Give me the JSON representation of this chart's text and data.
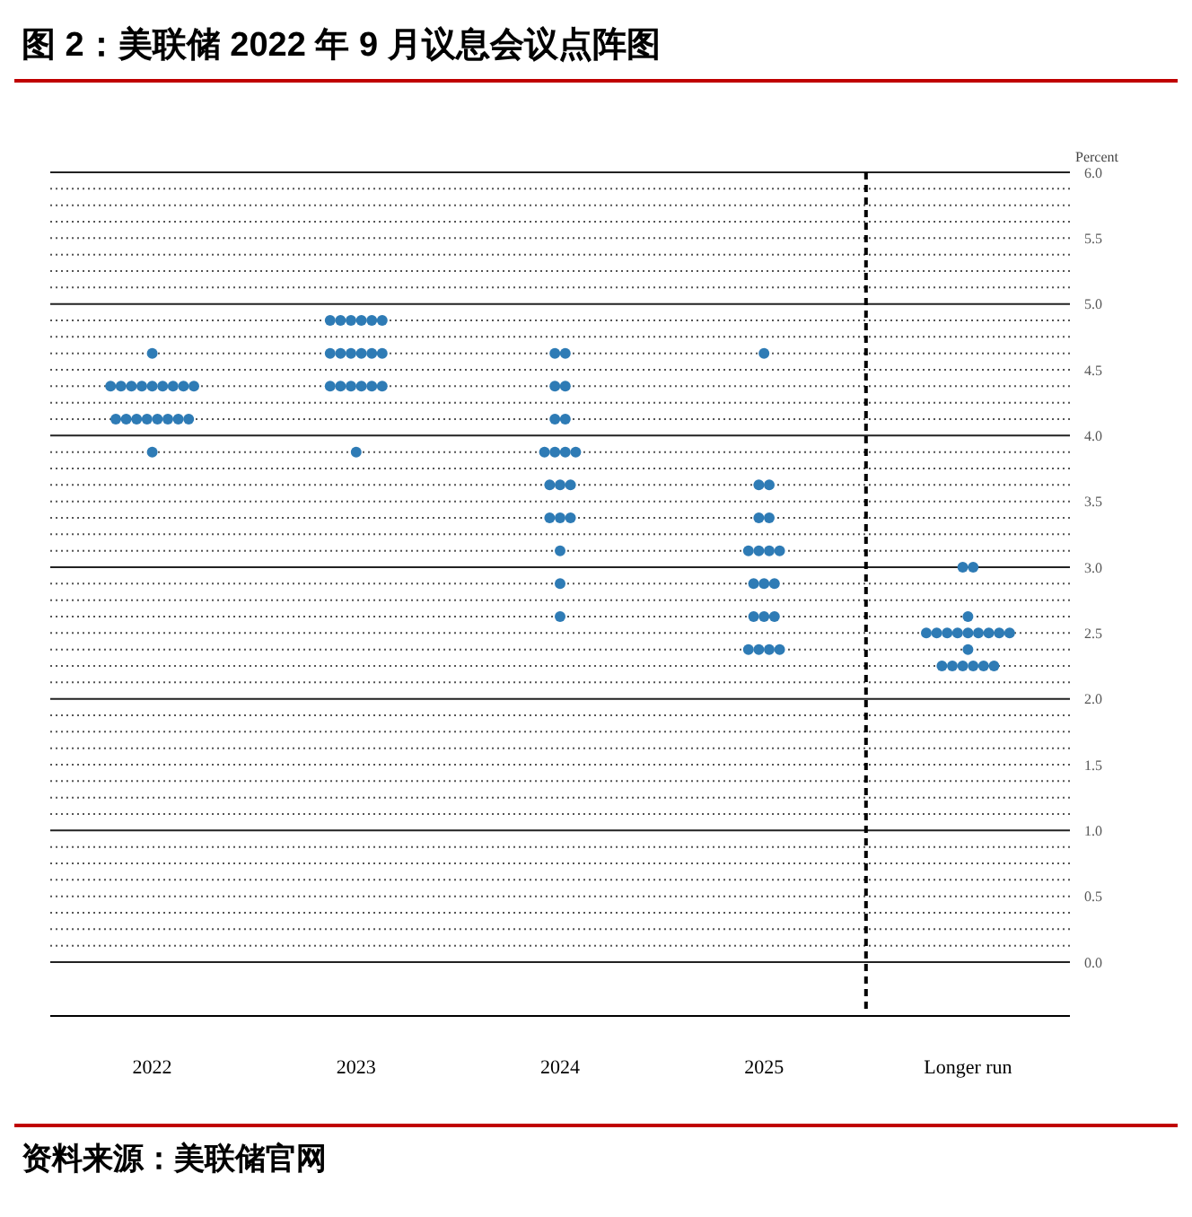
{
  "chart_data": {
    "type": "scatter",
    "title": "图 2：美联储 2022 年 9 月议息会议点阵图",
    "ylabel": "Percent",
    "annotations": [
      "资料来源：美联储官网"
    ],
    "categories": [
      "2022",
      "2023",
      "2024",
      "2025",
      "Longer run"
    ],
    "series": [
      {
        "color": "#2e7bb5",
        "values": [
          4.625,
          4.875,
          4.625,
          4.625,
          3.0
        ]
      },
      {
        "color": "#2e7bb5",
        "values": [
          4.375,
          4.875,
          4.625,
          3.625,
          3.0
        ]
      },
      {
        "color": "#2e7bb5",
        "values": [
          4.375,
          4.875,
          4.375,
          3.625,
          2.625
        ]
      },
      {
        "color": "#2e7bb5",
        "values": [
          4.375,
          4.875,
          4.375,
          3.375,
          2.5
        ]
      },
      {
        "color": "#2e7bb5",
        "values": [
          4.375,
          4.875,
          4.125,
          3.375,
          2.5
        ]
      },
      {
        "color": "#2e7bb5",
        "values": [
          4.375,
          4.875,
          4.125,
          3.125,
          2.5
        ]
      },
      {
        "color": "#2e7bb5",
        "values": [
          4.375,
          4.625,
          3.875,
          3.125,
          2.5
        ]
      },
      {
        "color": "#2e7bb5",
        "values": [
          4.375,
          4.625,
          3.875,
          3.125,
          2.5
        ]
      },
      {
        "color": "#2e7bb5",
        "values": [
          4.375,
          4.625,
          3.875,
          3.125,
          2.5
        ]
      },
      {
        "color": "#2e7bb5",
        "values": [
          4.375,
          4.625,
          3.875,
          2.875,
          2.5
        ]
      },
      {
        "color": "#2e7bb5",
        "values": [
          4.125,
          4.625,
          3.625,
          2.875,
          2.5
        ]
      },
      {
        "color": "#2e7bb5",
        "values": [
          4.125,
          4.625,
          3.625,
          2.875,
          2.5
        ]
      },
      {
        "color": "#2e7bb5",
        "values": [
          4.125,
          4.375,
          3.625,
          2.625,
          2.375
        ]
      },
      {
        "color": "#2e7bb5",
        "values": [
          4.125,
          4.375,
          3.375,
          2.625,
          2.25
        ]
      },
      {
        "color": "#2e7bb5",
        "values": [
          4.125,
          4.375,
          3.375,
          2.625,
          2.25
        ]
      },
      {
        "color": "#2e7bb5",
        "values": [
          4.125,
          4.375,
          3.375,
          2.375,
          2.25
        ]
      },
      {
        "color": "#2e7bb5",
        "values": [
          4.125,
          4.375,
          3.125,
          2.375,
          2.25
        ]
      },
      {
        "color": "#2e7bb5",
        "values": [
          4.125,
          4.375,
          2.875,
          2.375,
          2.25
        ]
      },
      {
        "color": "#2e7bb5",
        "values": [
          3.875,
          3.875,
          2.625,
          2.375,
          2.25
        ]
      }
    ],
    "ylim": [
      0,
      6
    ],
    "yticks": [
      {
        "value": 0,
        "label": "0.0"
      },
      {
        "value": 0.125,
        "label": null
      },
      {
        "value": 0.25,
        "label": null
      },
      {
        "value": 0.375,
        "label": null
      },
      {
        "value": 0.5,
        "label": "0.5"
      },
      {
        "value": 0.625,
        "label": null
      },
      {
        "value": 0.75,
        "label": null
      },
      {
        "value": 0.875,
        "label": null
      },
      {
        "value": 1,
        "label": "1.0"
      },
      {
        "value": 1.125,
        "label": null
      },
      {
        "value": 1.25,
        "label": null
      },
      {
        "value": 1.375,
        "label": null
      },
      {
        "value": 1.5,
        "label": "1.5"
      },
      {
        "value": 1.625,
        "label": null
      },
      {
        "value": 1.75,
        "label": null
      },
      {
        "value": 1.875,
        "label": null
      },
      {
        "value": 2,
        "label": "2.0"
      },
      {
        "value": 2.125,
        "label": null
      },
      {
        "value": 2.25,
        "label": null
      },
      {
        "value": 2.375,
        "label": null
      },
      {
        "value": 2.5,
        "label": "2.5"
      },
      {
        "value": 2.625,
        "label": null
      },
      {
        "value": 2.75,
        "label": null
      },
      {
        "value": 2.875,
        "label": null
      },
      {
        "value": 3,
        "label": "3.0"
      },
      {
        "value": 3.125,
        "label": null
      },
      {
        "value": 3.25,
        "label": null
      },
      {
        "value": 3.375,
        "label": null
      },
      {
        "value": 3.5,
        "label": "3.5"
      },
      {
        "value": 3.625,
        "label": null
      },
      {
        "value": 3.75,
        "label": null
      },
      {
        "value": 3.875,
        "label": null
      },
      {
        "value": 4,
        "label": "4.0"
      },
      {
        "value": 4.125,
        "label": null
      },
      {
        "value": 4.25,
        "label": null
      },
      {
        "value": 4.375,
        "label": null
      },
      {
        "value": 4.5,
        "label": "4.5"
      },
      {
        "value": 4.625,
        "label": null
      },
      {
        "value": 4.75,
        "label": null
      },
      {
        "value": 4.875,
        "label": null
      },
      {
        "value": 5,
        "label": "5.0"
      },
      {
        "value": 5.125,
        "label": null
      },
      {
        "value": 5.25,
        "label": null
      },
      {
        "value": 5.375,
        "label": null
      },
      {
        "value": 5.5,
        "label": "5.5"
      },
      {
        "value": 5.625,
        "label": null
      },
      {
        "value": 5.75,
        "label": null
      },
      {
        "value": 5.875,
        "label": null
      },
      {
        "value": 6,
        "label": "6.0"
      }
    ],
    "grid": "y",
    "marker": "circle"
  }
}
